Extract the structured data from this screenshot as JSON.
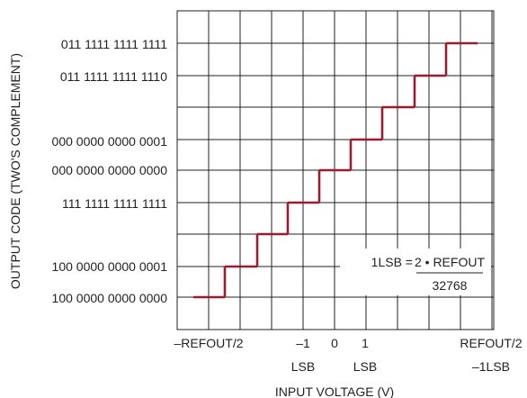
{
  "chart_data": {
    "type": "line",
    "line_color": "#9b1b30",
    "grid": true,
    "ylabel": "OUTPUT CODE (TWO'S COMPLEMENT)",
    "xlabel": "INPUT VOLTAGE (V)",
    "y_tick_labels": [
      "011 1111 1111 1111",
      "011 1111 1111 1110",
      "000 0000 0000 0001",
      "000 0000 0000 0000",
      "111 1111 1111 1111",
      "100 0000 0000 0001",
      "100 0000 0000 0000"
    ],
    "x_tick_labels": [
      {
        "line1": "–REFOUT/2",
        "line2": ""
      },
      {
        "line1": "–1",
        "line2": "LSB"
      },
      {
        "line1": "0",
        "line2": ""
      },
      {
        "line1": "1",
        "line2": "LSB"
      },
      {
        "line1": "REFOUT/2",
        "line2": "–1LSB"
      }
    ],
    "step_levels": [
      -32768,
      -32767,
      -1,
      0,
      1,
      32766,
      32767
    ],
    "annotation": {
      "left": "1LSB =",
      "numerator": "2 • REFOUT",
      "denominator": "32768"
    }
  }
}
